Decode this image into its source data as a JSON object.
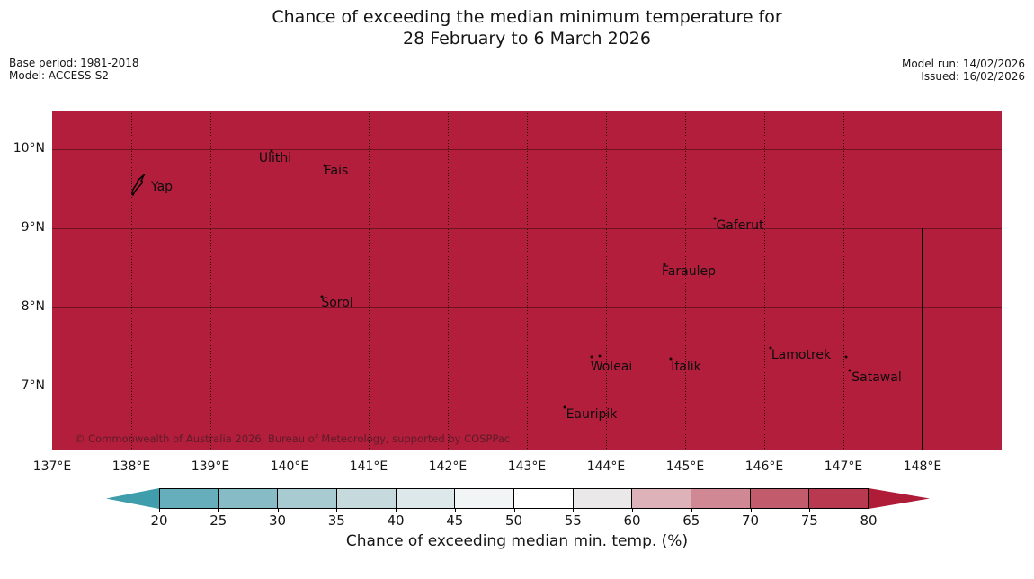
{
  "title": {
    "line1": "Chance of exceeding the median minimum temperature for",
    "line2": "28 February to 6 March 2026"
  },
  "meta_left": {
    "base_period": "Base period: 1981-2018",
    "model": "Model: ACCESS-S2"
  },
  "meta_right": {
    "model_run": "Model run: 14/02/2026",
    "issued": "Issued: 16/02/2026"
  },
  "map": {
    "background_color": "#b21e3b",
    "copyright": "© Commonwealth of Australia 2026, Bureau of Meteorology, supported by COSPPac",
    "x_ticks": [
      "137°E",
      "138°E",
      "139°E",
      "140°E",
      "141°E",
      "142°E",
      "143°E",
      "144°E",
      "145°E",
      "146°E",
      "147°E",
      "148°E"
    ],
    "y_ticks": [
      "10°N",
      "9°N",
      "8°N",
      "7°N"
    ],
    "islands": [
      {
        "name": "Yap",
        "label": [
          122,
          85
        ],
        "dots": [],
        "glyph": true
      },
      {
        "name": "Ulithi",
        "label": [
          248,
          53
        ],
        "dots": [
          [
            244,
            45
          ]
        ]
      },
      {
        "name": "Fais",
        "label": [
          316,
          67
        ],
        "dots": [
          [
            303,
            61
          ]
        ]
      },
      {
        "name": "Sorol",
        "label": [
          317,
          214
        ],
        "dots": [
          [
            300,
            207
          ]
        ]
      },
      {
        "name": "Gaferut",
        "label": [
          765,
          128
        ],
        "dots": [
          [
            737,
            120
          ]
        ]
      },
      {
        "name": "Faraulep",
        "label": [
          708,
          179
        ],
        "dots": [
          [
            681,
            171
          ]
        ]
      },
      {
        "name": "Woleai",
        "label": [
          622,
          285
        ],
        "dots": [
          [
            600,
            274
          ],
          [
            609,
            273
          ]
        ]
      },
      {
        "name": "Ifalik",
        "label": [
          705,
          285
        ],
        "dots": [
          [
            688,
            276
          ]
        ]
      },
      {
        "name": "Eauripik",
        "label": [
          600,
          338
        ],
        "dots": [
          [
            570,
            330
          ]
        ]
      },
      {
        "name": "Lamotrek",
        "label": [
          833,
          272
        ],
        "dots": [
          [
            799,
            264
          ],
          [
            883,
            274
          ]
        ]
      },
      {
        "name": "Satawal",
        "label": [
          917,
          297
        ],
        "dots": [
          [
            887,
            289
          ]
        ]
      }
    ],
    "boundary_line": {
      "longitude": "148°E",
      "from_latitude": "9°N",
      "to": "map bottom"
    }
  },
  "colorbar": {
    "label": "Chance of exceeding median min. temp. (%)",
    "ticks": [
      "20",
      "25",
      "30",
      "35",
      "40",
      "45",
      "50",
      "55",
      "60",
      "65",
      "70",
      "75",
      "80"
    ],
    "under_color": "#3f9dac",
    "over_color": "#ae1c37",
    "segment_colors": [
      "#66aebc",
      "#87bcc7",
      "#a8cbd2",
      "#c6dade",
      "#dde8ea",
      "#f2f5f5",
      "#ffffff",
      "#eae8e8",
      "#ddb2b9",
      "#d08994",
      "#c25b6c",
      "#b93a50"
    ]
  },
  "chart_data": {
    "type": "heatmap",
    "title": "Chance of exceeding the median minimum temperature for 28 February to 6 March 2026",
    "x_axis": {
      "ticks": [
        "137°E",
        "138°E",
        "139°E",
        "140°E",
        "141°E",
        "142°E",
        "143°E",
        "144°E",
        "145°E",
        "146°E",
        "147°E",
        "148°E"
      ]
    },
    "y_axis": {
      "ticks": [
        "10°N",
        "9°N",
        "8°N",
        "7°N"
      ]
    },
    "colorbar_scale": {
      "label": "Chance of exceeding median min. temp. (%)",
      "ticks": [
        20,
        25,
        30,
        35,
        40,
        45,
        50,
        55,
        60,
        65,
        70,
        75,
        80
      ]
    },
    "field_summary": "Entire mapped region (137°E–149°E, ~6°N–10.5°N) shown in the >80% color class"
  }
}
